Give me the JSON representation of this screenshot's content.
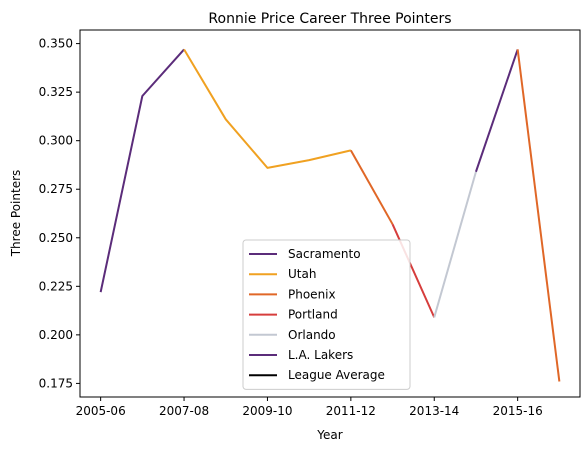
{
  "chart_data": {
    "type": "line",
    "title": "Ronnie Price Career Three Pointers",
    "xlabel": "Year",
    "ylabel": "Three Pointers",
    "ylim": [
      0.168,
      0.357
    ],
    "x_ticks": [
      "2005-06",
      "2007-08",
      "2009-10",
      "2011-12",
      "2013-14",
      "2015-16"
    ],
    "y_ticks": [
      "0.175",
      "0.200",
      "0.225",
      "0.250",
      "0.275",
      "0.300",
      "0.325",
      "0.350"
    ],
    "legend_position": "lower-center",
    "series": [
      {
        "name": "Sacramento",
        "color": "#5b2c7a",
        "points": [
          [
            "2005-06",
            0.222
          ],
          [
            "2006-07",
            0.323
          ],
          [
            "2007-08",
            0.347
          ]
        ]
      },
      {
        "name": "Utah",
        "color": "#f0a121",
        "points": [
          [
            "2007-08",
            0.347
          ],
          [
            "2008-09",
            0.311
          ],
          [
            "2009-10",
            0.286
          ],
          [
            "2010-11",
            0.29
          ],
          [
            "2011-12",
            0.295
          ]
        ]
      },
      {
        "name": "Phoenix",
        "color": "#e06727",
        "points": [
          [
            "2011-12",
            0.295
          ],
          [
            "2012-13",
            0.257
          ]
        ]
      },
      {
        "name": "Portland",
        "color": "#d63d3c",
        "points": [
          [
            "2012-13",
            0.257
          ],
          [
            "2013-14",
            0.209
          ]
        ]
      },
      {
        "name": "Orlando",
        "color": "#c3c8d2",
        "points": [
          [
            "2013-14",
            0.209
          ],
          [
            "2014-15",
            0.284
          ]
        ]
      },
      {
        "name": "L.A. Lakers",
        "color": "#5b2c7a",
        "points": [
          [
            "2014-15",
            0.284
          ],
          [
            "2015-16",
            0.347
          ]
        ]
      },
      {
        "name": "Phoenix",
        "color": "#e06727",
        "legend": false,
        "points": [
          [
            "2015-16",
            0.347
          ],
          [
            "2016-17",
            0.176
          ]
        ]
      },
      {
        "name": "League Average",
        "color": "#000000",
        "points": []
      }
    ]
  }
}
